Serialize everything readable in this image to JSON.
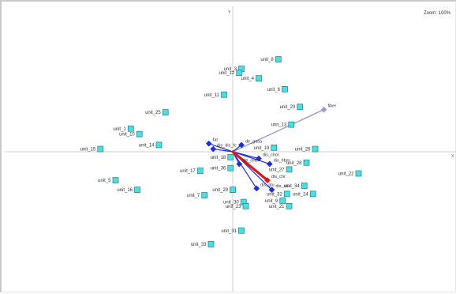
{
  "window": {
    "zoom_label": "Zoom: 100%"
  },
  "axes": {
    "y_label": "Y",
    "x_label": "X"
  },
  "chart_data": {
    "type": "scatter",
    "subtype": "biplot",
    "title": "",
    "xlabel": "",
    "ylabel": "",
    "xlim": [
      -1.0,
      1.0
    ],
    "ylim": [
      -1.0,
      1.0
    ],
    "grid": false,
    "legend": "none",
    "colors": {
      "unit_fill": "#4fdde0",
      "unit_stroke": "#1a7f86",
      "variable_point": "#1f2fd6",
      "arrow_lavender": "#9c99d8",
      "arrow_blue": "#1f2fd6",
      "arrow_red": "#d61b1b",
      "axis": "#cfcfcf",
      "text": "#333333"
    },
    "units": [
      {
        "label": "unit_8",
        "x": 0.21,
        "y": 0.68
      },
      {
        "label": "unit_3",
        "x": 0.04,
        "y": 0.61
      },
      {
        "label": "unit_12",
        "x": 0.03,
        "y": 0.58
      },
      {
        "label": "unit_4",
        "x": 0.12,
        "y": 0.54
      },
      {
        "label": "unit_6",
        "x": 0.24,
        "y": 0.46
      },
      {
        "label": "unit_11",
        "x": -0.04,
        "y": 0.42
      },
      {
        "label": "unit_20",
        "x": 0.31,
        "y": 0.33
      },
      {
        "label": "unit_25",
        "x": -0.31,
        "y": 0.29
      },
      {
        "label": "unit_13",
        "x": 0.27,
        "y": 0.2
      },
      {
        "label": "unit_1",
        "x": -0.47,
        "y": 0.17
      },
      {
        "label": "unit_10",
        "x": -0.43,
        "y": 0.13
      },
      {
        "label": "unit_14",
        "x": -0.34,
        "y": 0.05
      },
      {
        "label": "unit_15",
        "x": -0.61,
        "y": 0.02
      },
      {
        "label": "unit_19",
        "x": 0.19,
        "y": 0.03
      },
      {
        "label": "unit_26",
        "x": 0.38,
        "y": 0.02
      },
      {
        "label": "unit_18",
        "x": -0.01,
        "y": -0.04
      },
      {
        "label": "unit_28",
        "x": 0.34,
        "y": -0.08
      },
      {
        "label": "unit_27",
        "x": 0.26,
        "y": -0.13
      },
      {
        "label": "unit_36",
        "x": -0.01,
        "y": -0.12
      },
      {
        "label": "unit_17",
        "x": -0.15,
        "y": -0.14
      },
      {
        "label": "unit_22",
        "x": 0.58,
        "y": -0.16
      },
      {
        "label": "unit_5",
        "x": -0.54,
        "y": -0.21
      },
      {
        "label": "unit_34",
        "x": 0.33,
        "y": -0.25
      },
      {
        "label": "unit_16",
        "x": -0.44,
        "y": -0.28
      },
      {
        "label": "unit_29",
        "x": 0.0,
        "y": -0.28
      },
      {
        "label": "unit_7",
        "x": -0.13,
        "y": -0.32
      },
      {
        "label": "unit_32",
        "x": 0.25,
        "y": -0.31
      },
      {
        "label": "unit_24",
        "x": 0.37,
        "y": -0.31
      },
      {
        "label": "unit_9",
        "x": 0.23,
        "y": -0.36
      },
      {
        "label": "unit_30",
        "x": 0.05,
        "y": -0.37
      },
      {
        "label": "unit_23",
        "x": 0.06,
        "y": -0.4
      },
      {
        "label": "unit_21",
        "x": 0.26,
        "y": -0.4
      },
      {
        "label": "unit_31",
        "x": 0.04,
        "y": -0.58
      },
      {
        "label": "unit_33",
        "x": -0.1,
        "y": -0.68
      }
    ],
    "variables": [
      {
        "label": "fiber",
        "x": 0.42,
        "y": 0.31,
        "color": "lavender"
      },
      {
        "label": "fat",
        "x": -0.11,
        "y": 0.06,
        "color": "blue"
      },
      {
        "label": "dis_dis_fc",
        "x": -0.09,
        "y": 0.02,
        "color": "blue"
      },
      {
        "label": "de_gasa",
        "x": 0.04,
        "y": 0.05,
        "color": "blue"
      },
      {
        "label": "de_cille",
        "x": 0.03,
        "y": -0.09,
        "color": "blue"
      },
      {
        "label": "dis_chol",
        "x": 0.12,
        "y": -0.05,
        "color": "blue"
      },
      {
        "label": "dis_fiber",
        "x": 0.17,
        "y": -0.09,
        "color": "blue"
      },
      {
        "label": "dis_glu",
        "x": 0.11,
        "y": -0.27,
        "color": "blue"
      },
      {
        "label": "dis_stu",
        "x": 0.18,
        "y": -0.28,
        "color": "blue"
      },
      {
        "label": "dis_chr",
        "x": 0.16,
        "y": -0.21,
        "color": "red"
      }
    ]
  }
}
